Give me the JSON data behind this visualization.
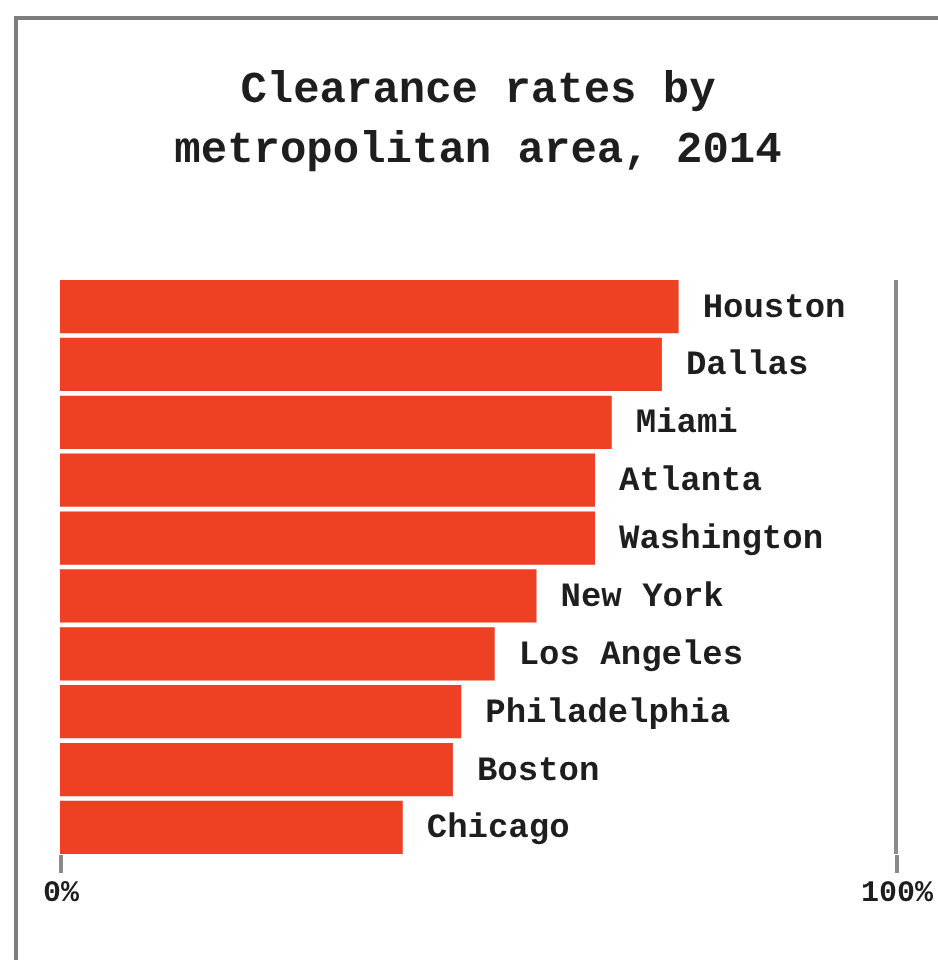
{
  "chart_data": {
    "type": "bar",
    "orientation": "horizontal",
    "title": "Clearance rates by metropolitan area, 2014",
    "categories": [
      "Houston",
      "Dallas",
      "Miami",
      "Atlanta",
      "Washington",
      "New York",
      "Los Angeles",
      "Philadelphia",
      "Boston",
      "Chicago"
    ],
    "values": [
      74,
      72,
      66,
      64,
      64,
      57,
      52,
      48,
      47,
      41
    ],
    "color": "#ee4124",
    "xlim": [
      0,
      100
    ],
    "xticks": [
      {
        "value": 0,
        "label": "0%"
      },
      {
        "value": 100,
        "label": "100%"
      }
    ],
    "ref_lines": [
      {
        "axis": "x",
        "value": 100,
        "color": "#8a8a8a"
      }
    ]
  }
}
